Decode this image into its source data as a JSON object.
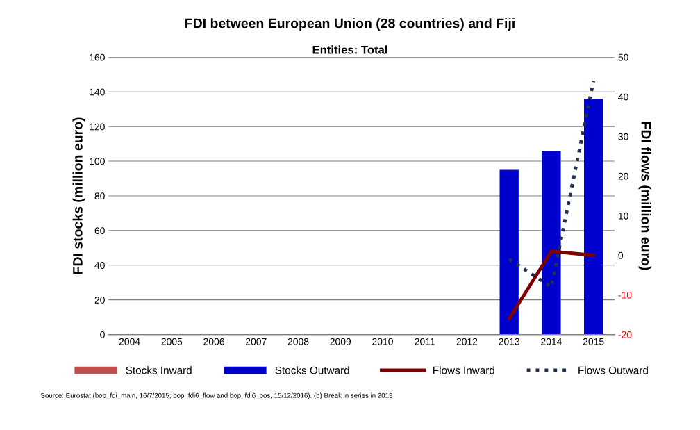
{
  "chart_data": {
    "type": "bar",
    "title": "FDI between European Union (28 countries) and Fiji",
    "subtitle": "Entities: Total",
    "ylabel": "FDI stocks (million euro)",
    "y2label": "FDI flows (million euro)",
    "categories": [
      "2004",
      "2005",
      "2006",
      "2007",
      "2008",
      "2009",
      "2010",
      "2011",
      "2012",
      "2013",
      "2014",
      "2015"
    ],
    "series": [
      {
        "name": "Stocks Inward",
        "color": "#c0504d",
        "values": [
          null,
          null,
          null,
          null,
          null,
          null,
          null,
          null,
          null,
          null,
          null,
          null
        ]
      },
      {
        "name": "Stocks Outward",
        "color": "#0000cc",
        "values": [
          null,
          null,
          null,
          null,
          null,
          null,
          null,
          null,
          null,
          95,
          106,
          136
        ]
      },
      {
        "name": "Flows Inward",
        "type": "line",
        "axis": "y2",
        "color": "#800000",
        "line_style": "solid",
        "values": [
          null,
          null,
          null,
          null,
          null,
          null,
          null,
          null,
          null,
          -16,
          1,
          0
        ]
      },
      {
        "name": "Flows Outward",
        "type": "line",
        "axis": "y2",
        "color": "#1f2f4f",
        "line_style": "dotted",
        "values": [
          null,
          null,
          null,
          null,
          null,
          null,
          null,
          null,
          null,
          -1,
          -8,
          44
        ]
      }
    ],
    "ylim": [
      0,
      160
    ],
    "yticks": [
      0,
      20,
      40,
      60,
      80,
      100,
      120,
      140,
      160
    ],
    "y2lim": [
      -20,
      50
    ],
    "y2ticks": [
      -20,
      -10,
      0,
      10,
      20,
      30,
      40,
      50
    ],
    "grid": "y",
    "legend": "bottom",
    "annotations": [
      "Source: Eurostat (bop_fdi_main, 16/7/2015; bop_fdi6_flow and bop_fdi6_pos, 15/12/2016). (b) Break in series in 2013"
    ]
  }
}
